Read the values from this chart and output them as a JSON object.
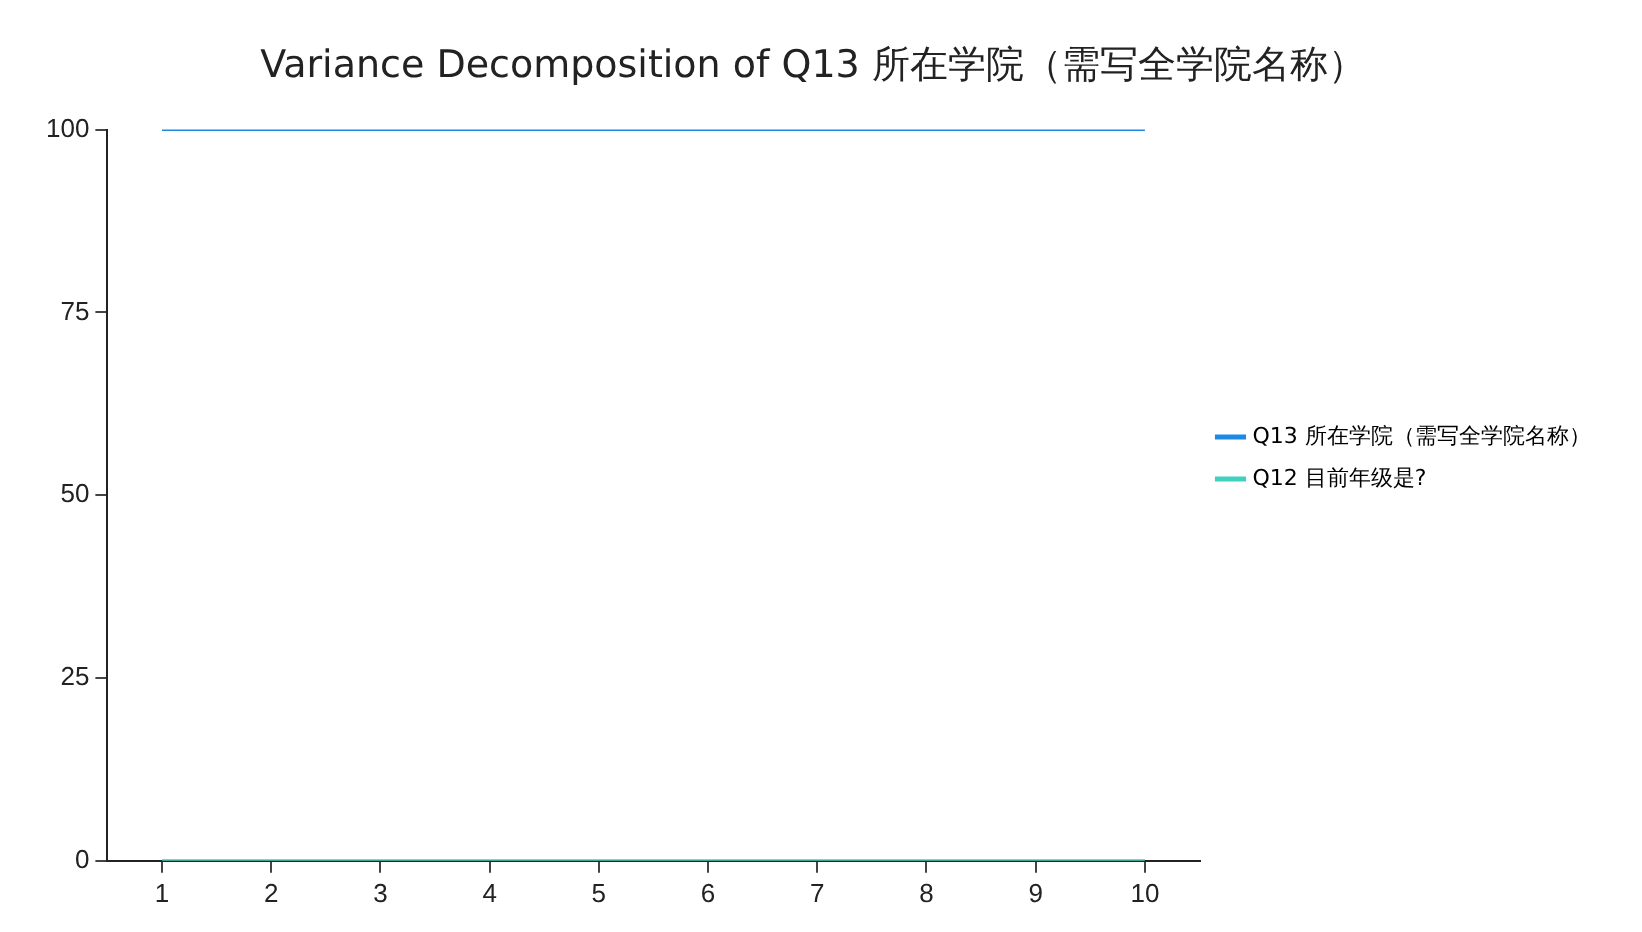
{
  "chart_data": {
    "type": "line",
    "title": "Variance Decomposition of Q13 所在学院（需写全学院名称）",
    "categories": [
      "1",
      "2",
      "3",
      "4",
      "5",
      "6",
      "7",
      "8",
      "9",
      "10"
    ],
    "series": [
      {
        "name": "Q13 所在学院（需写全学院名称）",
        "color": "#1e88e5",
        "values": [
          100,
          100,
          100,
          100,
          100,
          100,
          100,
          100,
          100,
          100
        ]
      },
      {
        "name": "Q12 目前年级是?",
        "color": "#40d0c0",
        "values": [
          0,
          0,
          0,
          0,
          0,
          0,
          0,
          0,
          0,
          0
        ]
      }
    ],
    "ylim": [
      0,
      100
    ],
    "yticks": [
      0,
      25,
      50,
      75,
      100
    ],
    "grid": false,
    "legend": "right",
    "marker": "none",
    "line_style": "solid"
  }
}
